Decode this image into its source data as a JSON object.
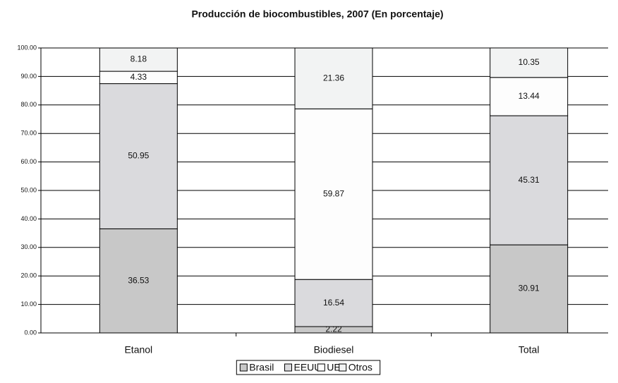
{
  "chart_data": {
    "type": "stacked_bar",
    "title": "Producción de biocombustibles, 2007 (En porcentaje)",
    "categories": [
      "Etanol",
      "Biodiesel",
      "Total"
    ],
    "series": [
      {
        "name": "Brasil",
        "color": "#c8c8c8",
        "values": [
          36.53,
          2.22,
          30.91
        ]
      },
      {
        "name": "EEUU",
        "color": "#dadadd",
        "values": [
          50.95,
          16.54,
          45.31
        ]
      },
      {
        "name": "UE",
        "color": "#fdfdfd",
        "values": [
          4.33,
          59.87,
          13.44
        ]
      },
      {
        "name": "Otros",
        "color": "#f2f3f3",
        "values": [
          8.18,
          21.36,
          10.35
        ]
      }
    ],
    "ylim": [
      0,
      100
    ],
    "yticks": [
      {
        "value": 0,
        "label": "0.00"
      },
      {
        "value": 10,
        "label": "10.00"
      },
      {
        "value": 20,
        "label": "20.00"
      },
      {
        "value": 30,
        "label": "30.00"
      },
      {
        "value": 40,
        "label": "40.00"
      },
      {
        "value": 50,
        "label": "50.00"
      },
      {
        "value": 60,
        "label": "60.00"
      },
      {
        "value": 70,
        "label": "70.00"
      },
      {
        "value": 80,
        "label": "80.00"
      },
      {
        "value": 90,
        "label": "90.00"
      },
      {
        "value": 100,
        "label": "100.00"
      }
    ],
    "grid": true,
    "legend": "bottom"
  }
}
